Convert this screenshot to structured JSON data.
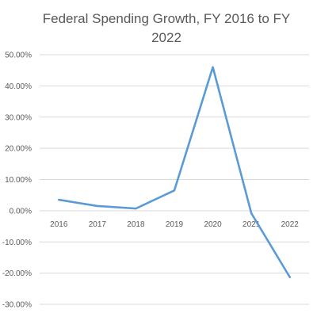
{
  "chart_data": {
    "type": "line",
    "title": "Federal Spending Growth, FY 2016 to FY 2022",
    "xlabel": "",
    "ylabel": "",
    "categories": [
      "2016",
      "2017",
      "2018",
      "2019",
      "2020",
      "2021",
      "2022"
    ],
    "series": [
      {
        "values": [
          3.5,
          1.5,
          0.7,
          6.5,
          46.0,
          -0.8,
          -21.3
        ]
      }
    ],
    "y_ticks": [
      "50.00%",
      "40.00%",
      "30.00%",
      "20.00%",
      "10.00%",
      "0.00%",
      "-10.00%",
      "-20.00%",
      "-30.00%"
    ],
    "y_tick_values": [
      50,
      40,
      30,
      20,
      10,
      0,
      -10,
      -20,
      -30
    ],
    "ylim": [
      -30,
      50
    ],
    "grid": true,
    "legend": "none",
    "colors": {
      "line": "#5B9BD5",
      "grid": "#D9D9D9",
      "text": "#595959"
    }
  }
}
